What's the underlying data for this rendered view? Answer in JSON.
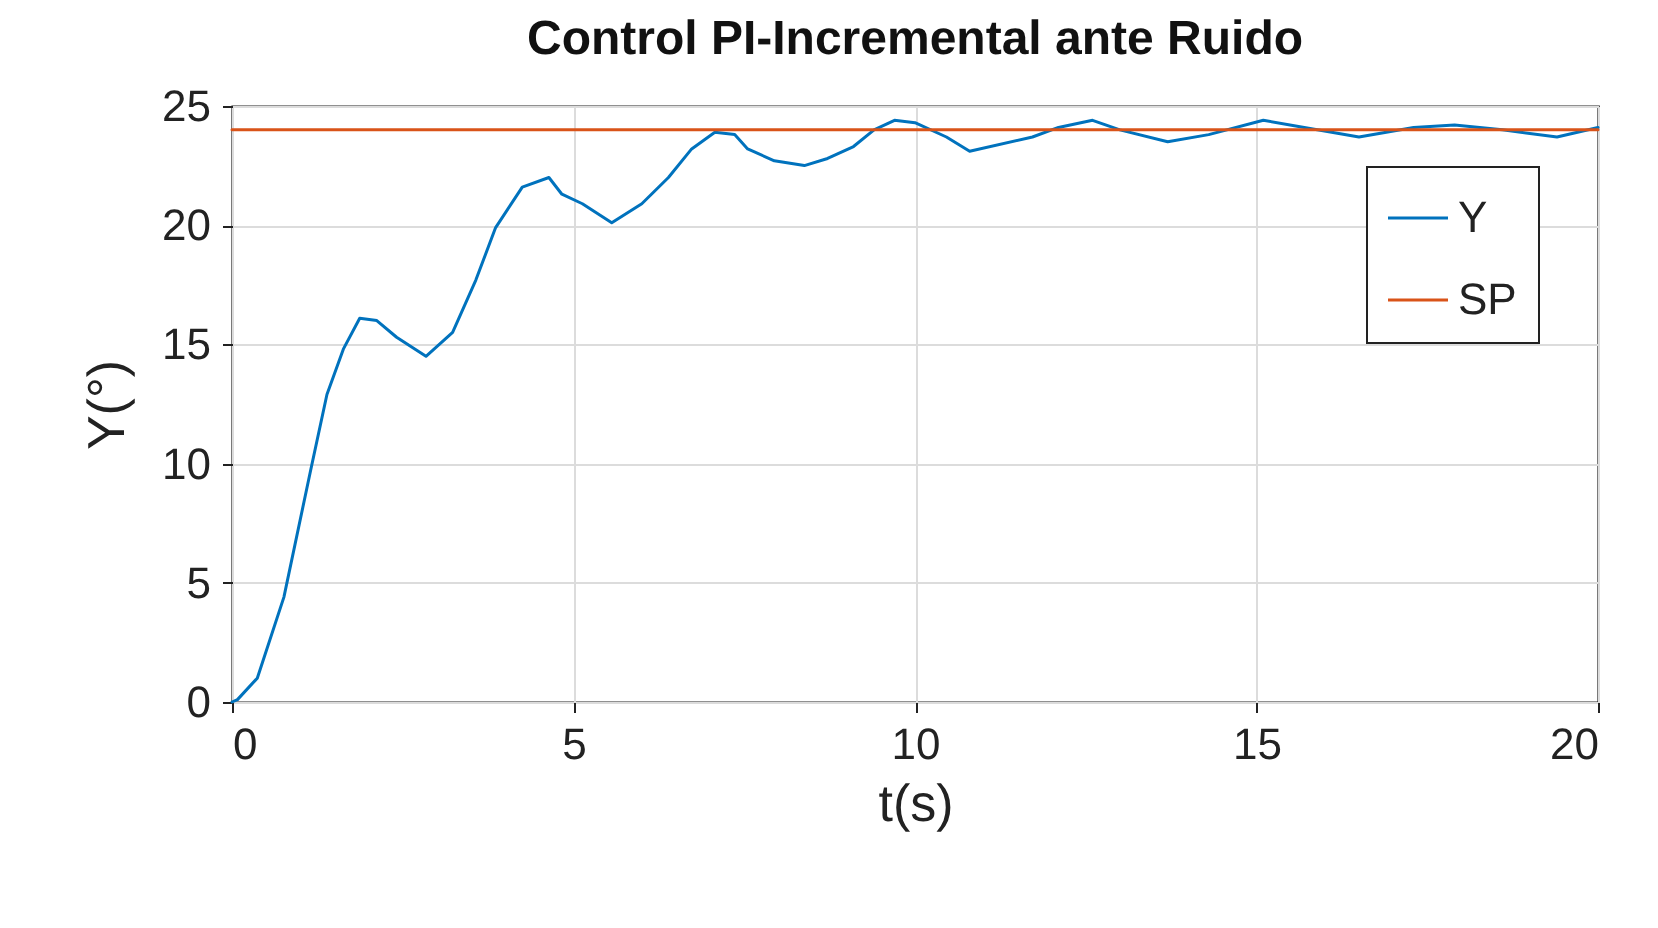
{
  "chart_data": {
    "type": "line",
    "title": "Control PI-Incremental ante Ruido",
    "xlabel": "t(s)",
    "ylabel": "Y(°)",
    "xlim": [
      0,
      20
    ],
    "xticks": [
      0,
      5,
      10,
      15,
      20
    ],
    "ylim": [
      0,
      25
    ],
    "yticks": [
      0,
      5,
      10,
      15,
      20,
      25
    ],
    "grid": true,
    "legend": "top right",
    "series": [
      {
        "name": "Y",
        "color": "#0072bd",
        "x": [
          0,
          0.08,
          0.37,
          0.76,
          1.15,
          1.39,
          1.63,
          1.87,
          2.12,
          2.41,
          2.84,
          3.23,
          3.57,
          3.86,
          4.25,
          4.64,
          4.83,
          5.13,
          5.56,
          6.0,
          6.39,
          6.73,
          7.07,
          7.36,
          7.55,
          7.94,
          8.38,
          8.72,
          9.1,
          9.4,
          9.7,
          10.0,
          10.46,
          10.8,
          11.72,
          12.1,
          12.6,
          13.0,
          13.7,
          14.3,
          15.1,
          15.7,
          16.5,
          17.3,
          17.9,
          18.6,
          19.4,
          20.0
        ],
        "values": [
          0,
          0.1,
          1.0,
          4.4,
          9.7,
          12.9,
          14.8,
          16.1,
          16.0,
          15.3,
          14.5,
          15.5,
          17.7,
          19.9,
          21.6,
          22.0,
          21.3,
          20.9,
          20.1,
          20.9,
          22.0,
          23.2,
          23.9,
          23.8,
          23.2,
          22.7,
          22.5,
          22.8,
          23.3,
          24.0,
          24.4,
          24.3,
          23.7,
          23.1,
          23.7,
          24.1,
          24.4,
          24.0,
          23.5,
          23.8,
          24.4,
          24.1,
          23.7,
          24.1,
          24.2,
          24.0,
          23.7,
          24.1
        ]
      },
      {
        "name": "SP",
        "color": "#d95319",
        "x": [
          0,
          20
        ],
        "values": [
          24,
          24
        ]
      }
    ]
  }
}
